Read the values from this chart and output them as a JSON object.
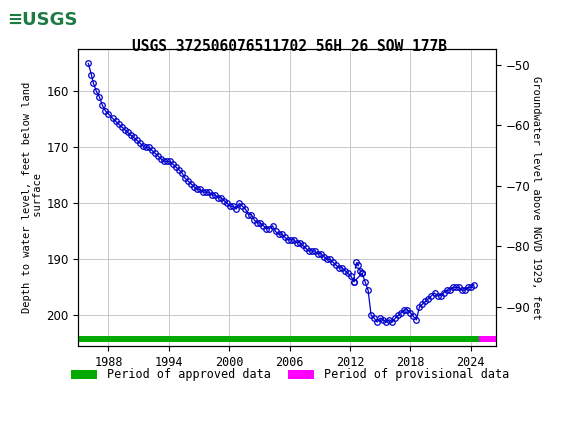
{
  "title": "USGS 372506076511702 56H 26 SOW 177B",
  "ylabel_left": "Depth to water level, feet below land\n surface",
  "ylabel_right": "Groundwater level above NGVD 1929, feet",
  "ylim_left": [
    205.5,
    152.5
  ],
  "ylim_right": [
    -96.5,
    -47.5
  ],
  "xlim": [
    1985.0,
    2026.5
  ],
  "xticks": [
    1988,
    1994,
    2000,
    2006,
    2012,
    2018,
    2024
  ],
  "yticks_left": [
    160,
    170,
    180,
    190,
    200
  ],
  "yticks_right": [
    -50,
    -60,
    -70,
    -80,
    -90
  ],
  "approved_xstart": 1985.0,
  "approved_xend": 2024.8,
  "provisional_xstart": 2024.8,
  "provisional_xend": 2026.5,
  "header_color": "#1c7a42",
  "line_color": "#0000cc",
  "marker_color": "#0000cc",
  "approved_color": "#00aa00",
  "provisional_color": "#ff00ff",
  "background_color": "#ffffff",
  "grid_color": "#c8c8c8",
  "data_x": [
    1986.0,
    1986.3,
    1986.5,
    1986.8,
    1987.1,
    1987.4,
    1987.7,
    1988.0,
    1988.4,
    1988.7,
    1989.0,
    1989.3,
    1989.6,
    1989.9,
    1990.2,
    1990.5,
    1990.8,
    1991.1,
    1991.4,
    1991.7,
    1992.0,
    1992.3,
    1992.6,
    1992.9,
    1993.2,
    1993.5,
    1993.8,
    1994.1,
    1994.4,
    1994.7,
    1995.0,
    1995.3,
    1995.6,
    1995.9,
    1996.2,
    1996.5,
    1996.8,
    1997.1,
    1997.4,
    1997.7,
    1998.0,
    1998.3,
    1998.6,
    1998.9,
    1999.2,
    1999.5,
    1999.8,
    2000.1,
    2000.4,
    2000.7,
    2001.0,
    2001.3,
    2001.6,
    2001.9,
    2002.2,
    2002.5,
    2002.8,
    2003.1,
    2003.4,
    2003.7,
    2004.0,
    2004.3,
    2004.6,
    2004.9,
    2005.2,
    2005.5,
    2005.8,
    2006.1,
    2006.4,
    2006.7,
    2007.0,
    2007.3,
    2007.6,
    2007.9,
    2008.2,
    2008.5,
    2008.8,
    2009.1,
    2009.4,
    2009.7,
    2010.0,
    2010.3,
    2010.6,
    2010.9,
    2011.2,
    2011.5,
    2011.8,
    2012.1,
    2012.4,
    2013.2,
    2013.5,
    2013.8,
    2014.1,
    2014.4,
    2014.7,
    2015.0,
    2015.3,
    2015.6,
    2015.9,
    2016.2,
    2016.5,
    2016.8,
    2017.1,
    2017.4,
    2017.7,
    2018.0,
    2018.3,
    2018.6,
    2018.9,
    2019.2,
    2019.5,
    2019.8,
    2020.1,
    2020.4,
    2020.7,
    2021.0,
    2021.3,
    2021.6,
    2021.9,
    2022.2,
    2022.5,
    2022.8,
    2023.1,
    2023.4,
    2023.7,
    2024.0,
    2024.3
  ],
  "data_y": [
    155.0,
    157.0,
    158.5,
    160.0,
    161.0,
    162.5,
    163.5,
    164.0,
    164.8,
    165.3,
    165.8,
    166.3,
    166.8,
    167.3,
    167.8,
    168.2,
    168.7,
    169.2,
    169.7,
    170.0,
    170.0,
    170.5,
    171.0,
    171.5,
    172.0,
    172.5,
    172.5,
    172.5,
    173.0,
    173.5,
    174.0,
    174.5,
    175.5,
    176.0,
    176.5,
    177.0,
    177.5,
    177.5,
    178.0,
    178.0,
    178.0,
    178.5,
    178.5,
    179.0,
    179.0,
    179.5,
    180.0,
    180.5,
    180.5,
    181.0,
    180.0,
    180.5,
    181.0,
    182.0,
    182.0,
    183.0,
    183.5,
    183.5,
    184.0,
    184.5,
    184.5,
    184.0,
    185.0,
    185.5,
    185.5,
    186.0,
    186.5,
    186.5,
    186.5,
    187.0,
    187.0,
    187.5,
    188.0,
    188.5,
    188.5,
    188.5,
    189.0,
    189.0,
    189.5,
    190.0,
    190.0,
    190.5,
    191.0,
    191.5,
    191.5,
    192.0,
    192.5,
    193.0,
    194.0,
    192.5,
    194.0,
    195.5,
    200.0,
    200.5,
    201.2,
    200.5,
    200.8,
    201.2,
    200.8,
    201.2,
    200.5,
    200.0,
    199.5,
    199.0,
    199.0,
    199.5,
    200.2,
    200.8,
    198.5,
    198.0,
    197.5,
    197.0,
    196.5,
    196.0,
    196.5,
    196.5,
    196.0,
    195.5,
    195.5,
    195.0,
    195.0,
    195.0,
    195.5,
    195.5,
    195.0,
    195.0,
    194.5
  ],
  "prov_x": [
    2012.4,
    2012.6,
    2012.8,
    2013.0,
    2013.2
  ],
  "prov_y": [
    194.0,
    190.5,
    191.0,
    192.0,
    192.5
  ],
  "bar_y_center": 204.2,
  "bar_height": 1.2
}
